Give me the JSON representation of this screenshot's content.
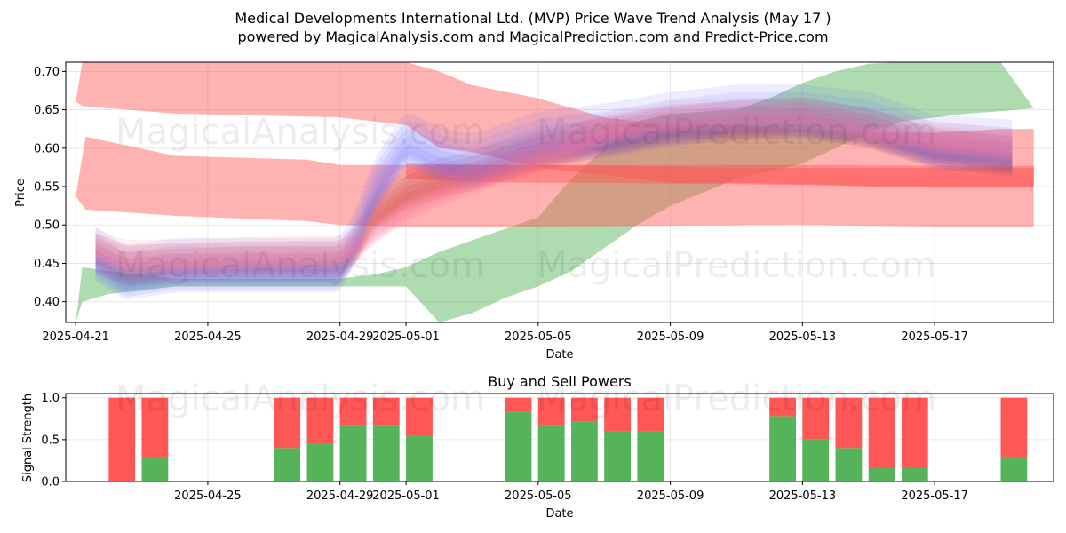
{
  "figure": {
    "title_line1": "Medical Developments International Ltd. (MVP) Price Wave Trend Analysis (May 17 )",
    "title_line2": "powered by MagicalAnalysis.com and MagicalPrediction.com and Predict-Price.com",
    "watermarks": [
      "MagicalAnalysis.com",
      "MagicalPrediction.com"
    ]
  },
  "chart_data": [
    {
      "type": "area",
      "ylabel": "Price",
      "xlabel": "Date",
      "ylim": [
        0.373,
        0.712
      ],
      "yticks": [
        0.4,
        0.45,
        0.5,
        0.55,
        0.6,
        0.65,
        0.7
      ],
      "ytick_labels": [
        "0.40",
        "0.45",
        "0.50",
        "0.55",
        "0.60",
        "0.65",
        "0.70"
      ],
      "xlim": [
        -0.3,
        29.6
      ],
      "xticks": [
        0,
        4,
        8,
        10,
        14,
        18,
        22,
        26
      ],
      "xtick_labels": [
        "2025-04-21",
        "2025-04-25",
        "2025-04-29",
        "2025-05-01",
        "2025-05-05",
        "2025-05-09",
        "2025-05-13",
        "2025-05-17"
      ],
      "x_unit": "days since 2025-04-21",
      "grid": true,
      "bands": [
        {
          "name": "green-band",
          "color": "#4caf50",
          "opacity": 0.45,
          "x": [
            0,
            0.2,
            1,
            3,
            6,
            8,
            9,
            10,
            11,
            12,
            13,
            14,
            15,
            16,
            17,
            18,
            20,
            21,
            22,
            23,
            24,
            25,
            26,
            27,
            28,
            29
          ],
          "upper": [
            0.37,
            0.445,
            0.44,
            0.43,
            0.43,
            0.43,
            0.435,
            0.445,
            0.465,
            0.48,
            0.495,
            0.51,
            0.56,
            0.6,
            0.635,
            0.645,
            0.65,
            0.665,
            0.685,
            0.7,
            0.71,
            0.72,
            0.72,
            0.72,
            0.72,
            0.652
          ],
          "lower": [
            0.37,
            0.4,
            0.41,
            0.42,
            0.42,
            0.42,
            0.42,
            0.42,
            0.36,
            0.385,
            0.405,
            0.42,
            0.44,
            0.47,
            0.5,
            0.525,
            0.56,
            0.57,
            0.58,
            0.6,
            0.62,
            0.635,
            0.64,
            0.645,
            0.648,
            0.652
          ]
        },
        {
          "name": "red-upper-band",
          "color": "#ff5555",
          "opacity": 0.45,
          "x": [
            0,
            0.2,
            3,
            8,
            10,
            11,
            12,
            14,
            16,
            18,
            20,
            22,
            24,
            26,
            28,
            29
          ],
          "upper": [
            0.66,
            0.72,
            0.72,
            0.72,
            0.72,
            0.7,
            0.682,
            0.665,
            0.64,
            0.63,
            0.63,
            0.625,
            0.62,
            0.62,
            0.625,
            0.625
          ],
          "lower": [
            0.66,
            0.655,
            0.645,
            0.64,
            0.63,
            0.6,
            0.595,
            0.575,
            0.565,
            0.555,
            0.555,
            0.553,
            0.55,
            0.55,
            0.55,
            0.55
          ]
        },
        {
          "name": "red-middle-band",
          "color": "#ff5555",
          "opacity": 0.45,
          "x": [
            0,
            0.3,
            3,
            7,
            8,
            10,
            14,
            18,
            22,
            26,
            29
          ],
          "upper": [
            0.537,
            0.615,
            0.59,
            0.585,
            0.578,
            0.578,
            0.578,
            0.578,
            0.578,
            0.577,
            0.577
          ],
          "lower": [
            0.537,
            0.52,
            0.512,
            0.505,
            0.5,
            0.498,
            0.498,
            0.499,
            0.5,
            0.498,
            0.497
          ]
        },
        {
          "name": "red-lower-band",
          "color": "#ff5555",
          "opacity": 0.45,
          "x": [
            10,
            12,
            14,
            16,
            18,
            20,
            22,
            24,
            26,
            29
          ],
          "upper": [
            0.58,
            0.578,
            0.578,
            0.577,
            0.576,
            0.574,
            0.574,
            0.574,
            0.574,
            0.574
          ],
          "lower": [
            0.56,
            0.556,
            0.555,
            0.555,
            0.554,
            0.553,
            0.552,
            0.551,
            0.55,
            0.55
          ]
        }
      ],
      "wave_series": [
        {
          "name": "wave-mid",
          "color": "#c0392b",
          "x": [
            0.6,
            1.5,
            3,
            5,
            7,
            8,
            8.5,
            9,
            10,
            11,
            12,
            14,
            16,
            18,
            20,
            22,
            24,
            26,
            28,
            28.5
          ],
          "y": [
            0.458,
            0.44,
            0.445,
            0.447,
            0.447,
            0.447,
            0.47,
            0.51,
            0.54,
            0.555,
            0.565,
            0.59,
            0.61,
            0.625,
            0.63,
            0.635,
            0.62,
            0.595,
            0.585,
            0.583
          ],
          "spread": 0.022
        },
        {
          "name": "wave-blue",
          "color": "#6b6bff",
          "x": [
            0.6,
            1.5,
            3,
            5,
            7,
            8,
            8.5,
            9,
            10,
            11,
            12,
            14,
            16,
            18,
            20,
            22,
            24,
            26,
            28,
            28.5
          ],
          "y": [
            0.455,
            0.43,
            0.44,
            0.44,
            0.44,
            0.44,
            0.48,
            0.54,
            0.605,
            0.585,
            0.575,
            0.605,
            0.615,
            0.63,
            0.64,
            0.64,
            0.63,
            0.6,
            0.595,
            0.593
          ],
          "spread": 0.03
        },
        {
          "name": "wave-pink",
          "color": "#ff7f9f",
          "x": [
            0.6,
            1.5,
            3,
            5,
            7,
            8,
            8.5,
            9,
            10,
            11,
            12,
            14,
            16,
            18,
            20,
            22,
            24,
            26,
            28,
            28.5
          ],
          "y": [
            0.47,
            0.455,
            0.455,
            0.458,
            0.46,
            0.46,
            0.47,
            0.49,
            0.52,
            0.54,
            0.555,
            0.585,
            0.62,
            0.635,
            0.64,
            0.64,
            0.625,
            0.61,
            0.6,
            0.6
          ],
          "spread": 0.018
        }
      ]
    },
    {
      "type": "bar",
      "title": "Buy and Sell Powers",
      "ylabel": "Signal Strength",
      "xlabel": "Date",
      "ylim": [
        0,
        1.05
      ],
      "yticks": [
        0.0,
        0.5,
        1.0
      ],
      "ytick_labels": [
        "0.0",
        "0.5",
        "1.0"
      ],
      "xlim": [
        -0.3,
        29.6
      ],
      "xticks": [
        4,
        8,
        10,
        14,
        18,
        22,
        26
      ],
      "xtick_labels": [
        "2025-04-25",
        "2025-04-29",
        "2025-05-01",
        "2025-05-05",
        "2025-05-09",
        "2025-05-13",
        "2025-05-17"
      ],
      "grid": true,
      "colors": {
        "buy": "#4caf50",
        "sell": "#ff4d4d"
      },
      "x": [
        1.4,
        2.4,
        6.4,
        7.4,
        8.4,
        9.4,
        10.4,
        13.4,
        14.4,
        15.4,
        16.4,
        17.4,
        21.4,
        22.4,
        23.4,
        24.4,
        25.4,
        28.4
      ],
      "series": [
        {
          "name": "Buy",
          "values": [
            0.0,
            0.28,
            0.4,
            0.45,
            0.67,
            0.67,
            0.55,
            0.83,
            0.67,
            0.72,
            0.6,
            0.6,
            0.78,
            0.5,
            0.4,
            0.17,
            0.17,
            0.28
          ]
        },
        {
          "name": "Sell",
          "values": [
            1.0,
            0.72,
            0.6,
            0.55,
            0.33,
            0.33,
            0.45,
            0.17,
            0.33,
            0.28,
            0.4,
            0.4,
            0.22,
            0.5,
            0.6,
            0.83,
            0.83,
            0.72
          ]
        }
      ]
    }
  ]
}
